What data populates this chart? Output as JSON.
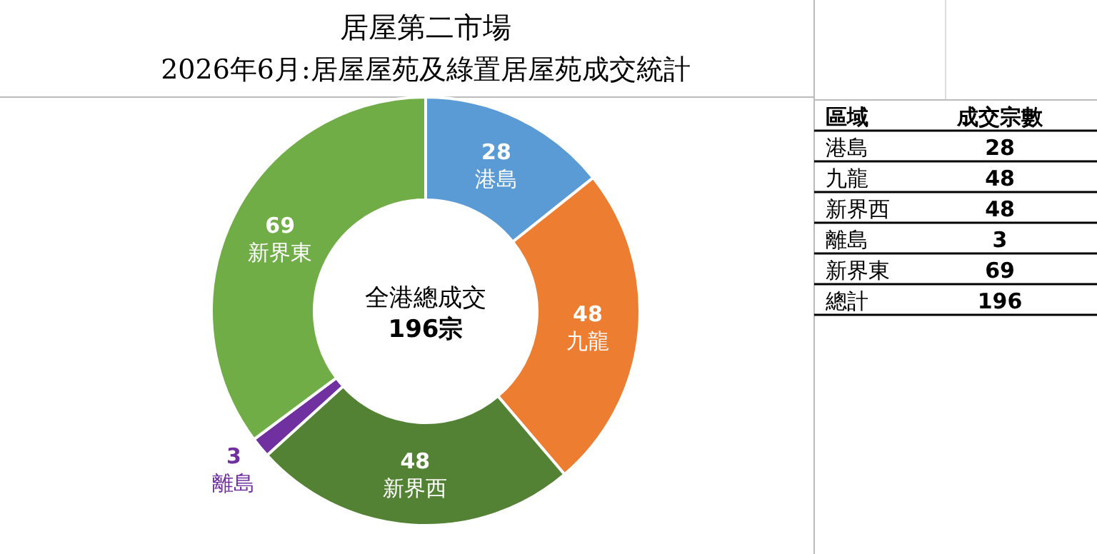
{
  "chart_data": [
    {
      "type": "donut",
      "title": "居屋第二市場",
      "subtitle": "2026年6月:居屋屋苑及綠置居屋苑成交統計",
      "categories": [
        "港島",
        "九龍",
        "新界西",
        "離島",
        "新界東"
      ],
      "values": [
        28,
        48,
        48,
        3,
        69
      ],
      "colors": [
        "#5b9bd5",
        "#ed7d31",
        "#548235",
        "#7030a0",
        "#70ad47"
      ],
      "data_labels": true,
      "annotations": [
        "全港總成交",
        "196宗"
      ]
    },
    {
      "type": "other",
      "annotations": [
        "區域",
        "成交宗數",
        "港島",
        "28",
        "九龍",
        "48",
        "新界西",
        "48",
        "離島",
        "3",
        "新界東",
        "69",
        "總計",
        "196"
      ]
    }
  ]
}
